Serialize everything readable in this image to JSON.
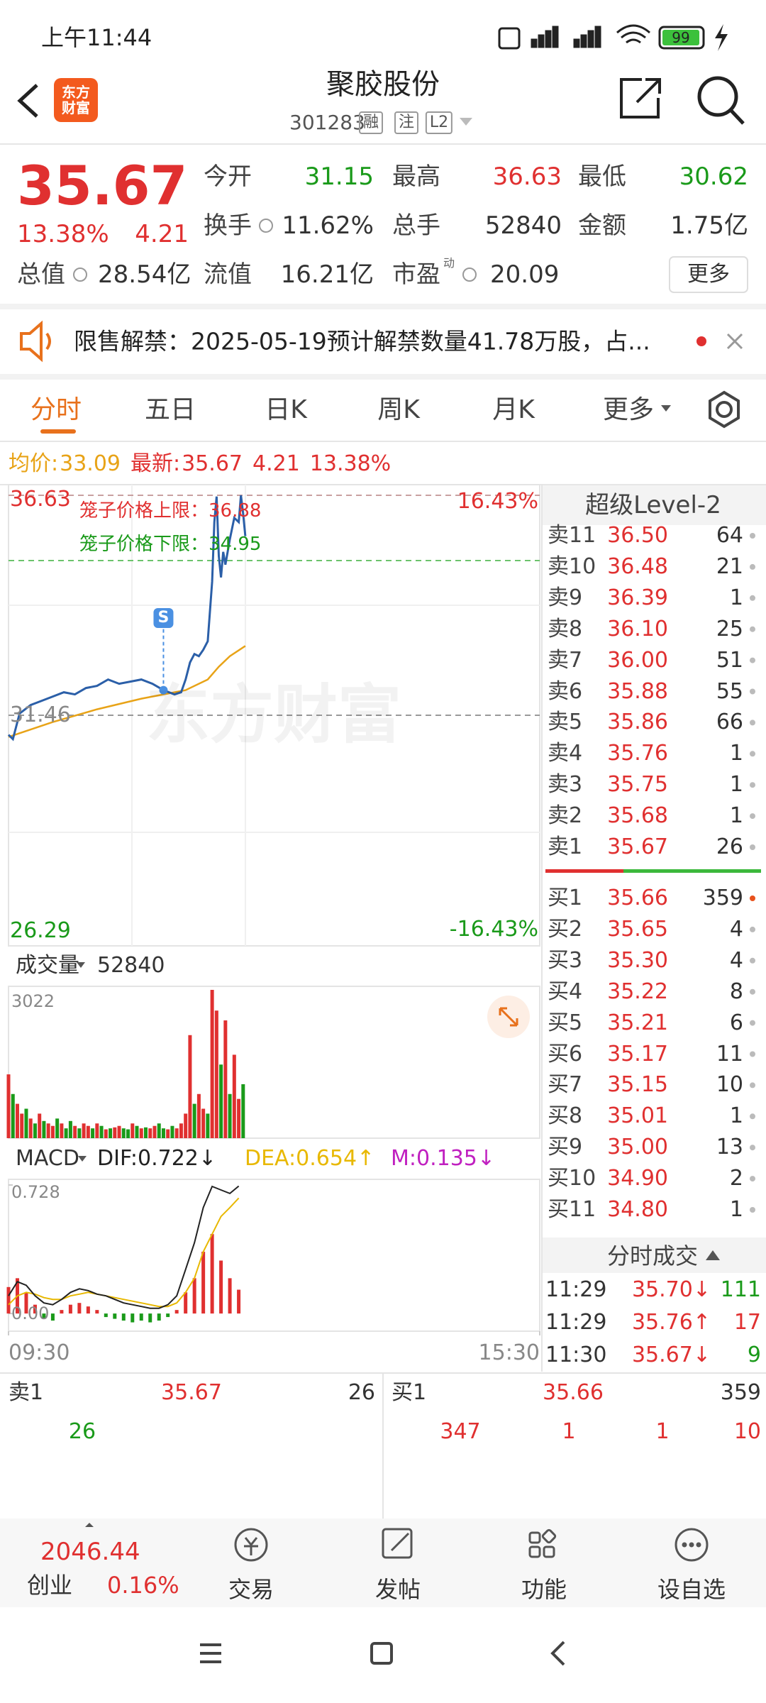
{
  "status": {
    "time": "上午11:44",
    "battery": "99"
  },
  "header": {
    "logo": "东方财富",
    "name": "聚胶股份",
    "code": "301283",
    "tags": [
      "融",
      "注",
      "L2"
    ]
  },
  "quote": {
    "price": "35.67",
    "pct": "13.38%",
    "change": "4.21",
    "more": "更多",
    "fields": [
      {
        "label": "今开",
        "value": "31.15",
        "color": "#1a9a1a"
      },
      {
        "label": "最高",
        "value": "36.63",
        "color": "#e03030"
      },
      {
        "label": "最低",
        "value": "30.62",
        "color": "#1a9a1a"
      },
      {
        "label": "换手",
        "value": "11.62%",
        "color": "#333333"
      },
      {
        "label": "总手",
        "value": "52840",
        "color": "#333333"
      },
      {
        "label": "金额",
        "value": "1.75亿",
        "color": "#333333"
      },
      {
        "label": "总值",
        "value": "28.54亿",
        "color": "#333333"
      },
      {
        "label": "流值",
        "value": "16.21亿",
        "color": "#333333"
      },
      {
        "label": "市盈",
        "sup": "动",
        "value": "20.09",
        "color": "#333333"
      }
    ]
  },
  "notice": "限售解禁：2025-05-19预计解禁数量41.78万股，占...",
  "tabs": [
    "分时",
    "五日",
    "日K",
    "周K",
    "月K",
    "更多"
  ],
  "chart": {
    "summary": {
      "avg_label": "均价:",
      "avg": "33.09",
      "latest_label": "最新:",
      "latest": "35.67",
      "change": "4.21",
      "pct": "13.38%"
    },
    "ylim": [
      26.29,
      36.63
    ],
    "yticks": [
      36.63,
      31.46,
      26.29
    ],
    "pct_labels": [
      "16.43%",
      "-16.43%"
    ],
    "cage": [
      "笼子价格上限：36.88",
      "笼子价格下限：34.95"
    ],
    "xlim": [
      0,
      240
    ],
    "xticks": [
      {
        "value": 0,
        "label": "09:30"
      },
      {
        "value": 240,
        "label": "15:30"
      }
    ],
    "price": {
      "color": "#2b5fa8",
      "x": [
        0,
        2,
        5,
        10,
        15,
        20,
        25,
        30,
        35,
        40,
        45,
        50,
        55,
        60,
        65,
        70,
        75,
        78,
        80,
        82,
        84,
        86,
        88,
        90,
        92,
        93,
        94,
        95,
        96,
        97,
        98,
        100,
        102,
        104,
        105,
        106,
        107
      ],
      "values": [
        31.0,
        30.9,
        31.5,
        31.7,
        31.8,
        31.9,
        32.0,
        31.95,
        32.1,
        32.15,
        32.3,
        32.2,
        32.25,
        32.3,
        32.2,
        32.05,
        31.95,
        32.0,
        32.3,
        32.7,
        32.9,
        32.85,
        33.0,
        33.2,
        34.6,
        36.0,
        36.6,
        35.2,
        34.7,
        35.3,
        35.0,
        35.6,
        36.1,
        36.0,
        36.63,
        36.2,
        35.67
      ]
    },
    "avg": {
      "color": "#e8a317",
      "x": [
        0,
        20,
        40,
        60,
        70,
        80,
        90,
        95,
        100,
        107
      ],
      "values": [
        30.95,
        31.3,
        31.6,
        31.85,
        31.95,
        32.05,
        32.3,
        32.6,
        32.85,
        33.09
      ]
    },
    "marker": {
      "label": "S",
      "x": 70,
      "value": 32.05
    },
    "volume": {
      "label": "成交量",
      "total": "52840",
      "ylim": [
        0,
        3022
      ],
      "yticks": [
        3022
      ],
      "up_color": "#e03030",
      "down_color": "#1a9a1a",
      "x": [
        0,
        2,
        4,
        6,
        8,
        10,
        12,
        14,
        16,
        18,
        20,
        22,
        24,
        26,
        28,
        30,
        32,
        34,
        36,
        38,
        40,
        42,
        44,
        46,
        48,
        50,
        52,
        54,
        56,
        58,
        60,
        62,
        64,
        66,
        68,
        70,
        72,
        74,
        76,
        78,
        80,
        82,
        84,
        86,
        88,
        90,
        92,
        94,
        96,
        98,
        100,
        102,
        104,
        106
      ],
      "values": [
        1300,
        900,
        700,
        500,
        600,
        400,
        300,
        500,
        350,
        300,
        250,
        400,
        300,
        200,
        350,
        250,
        200,
        300,
        250,
        200,
        300,
        250,
        180,
        200,
        220,
        250,
        200,
        180,
        300,
        250,
        200,
        220,
        200,
        250,
        300,
        200,
        180,
        250,
        200,
        300,
        500,
        2100,
        700,
        900,
        600,
        500,
        3022,
        2600,
        1500,
        2400,
        900,
        1700,
        800,
        1100
      ],
      "up": [
        true,
        false,
        true,
        true,
        false,
        true,
        false,
        true,
        false,
        true,
        true,
        false,
        true,
        false,
        false,
        true,
        false,
        true,
        true,
        false,
        true,
        false,
        true,
        false,
        true,
        true,
        false,
        false,
        true,
        false,
        true,
        false,
        true,
        true,
        false,
        false,
        true,
        false,
        true,
        true,
        true,
        true,
        false,
        true,
        true,
        false,
        true,
        true,
        false,
        true,
        false,
        true,
        true,
        false
      ]
    },
    "macd": {
      "label": "MACD",
      "dif": "DIF:0.722↓",
      "dea": "DEA:0.654↑",
      "m": "M:0.135↓",
      "dif_color": "#222222",
      "dea_color": "#e8b800",
      "m_color": "#c020c0",
      "ylim": [
        -0.1,
        0.728
      ],
      "yticks": [
        0.728,
        {
          "value": 0,
          "label": "0.00"
        }
      ],
      "x": [
        0,
        4,
        8,
        12,
        16,
        20,
        24,
        28,
        32,
        36,
        40,
        44,
        48,
        52,
        56,
        60,
        64,
        68,
        72,
        76,
        80,
        84,
        88,
        92,
        96,
        100,
        104
      ],
      "bars": [
        0.15,
        0.2,
        0.12,
        0.05,
        -0.03,
        -0.04,
        0.02,
        0.05,
        0.06,
        0.04,
        0.02,
        -0.02,
        -0.03,
        -0.04,
        -0.05,
        -0.04,
        -0.05,
        -0.04,
        -0.02,
        0.02,
        0.12,
        0.2,
        0.35,
        0.45,
        0.3,
        0.2,
        0.135
      ],
      "dif_line": [
        0.1,
        0.18,
        0.16,
        0.1,
        0.06,
        0.05,
        0.08,
        0.12,
        0.14,
        0.13,
        0.11,
        0.1,
        0.08,
        0.06,
        0.05,
        0.04,
        0.03,
        0.03,
        0.05,
        0.1,
        0.25,
        0.4,
        0.6,
        0.72,
        0.7,
        0.68,
        0.722
      ],
      "dea_line": [
        0.05,
        0.1,
        0.12,
        0.11,
        0.09,
        0.08,
        0.08,
        0.1,
        0.11,
        0.12,
        0.11,
        0.1,
        0.09,
        0.08,
        0.07,
        0.06,
        0.05,
        0.04,
        0.04,
        0.06,
        0.12,
        0.2,
        0.35,
        0.45,
        0.55,
        0.6,
        0.654
      ]
    }
  },
  "orderbook": {
    "title": "超级Level-2",
    "asks": [
      {
        "label": "卖11",
        "price": "36.50",
        "vol": "64"
      },
      {
        "label": "卖10",
        "price": "36.48",
        "vol": "21"
      },
      {
        "label": "卖9",
        "price": "36.39",
        "vol": "1"
      },
      {
        "label": "卖8",
        "price": "36.10",
        "vol": "25"
      },
      {
        "label": "卖7",
        "price": "36.00",
        "vol": "51"
      },
      {
        "label": "卖6",
        "price": "35.88",
        "vol": "55"
      },
      {
        "label": "卖5",
        "price": "35.86",
        "vol": "66"
      },
      {
        "label": "卖4",
        "price": "35.76",
        "vol": "1"
      },
      {
        "label": "卖3",
        "price": "35.75",
        "vol": "1"
      },
      {
        "label": "卖2",
        "price": "35.68",
        "vol": "1"
      },
      {
        "label": "卖1",
        "price": "35.67",
        "vol": "26"
      }
    ],
    "bids": [
      {
        "label": "买1",
        "price": "35.66",
        "vol": "359"
      },
      {
        "label": "买2",
        "price": "35.65",
        "vol": "4"
      },
      {
        "label": "买3",
        "price": "35.30",
        "vol": "4"
      },
      {
        "label": "买4",
        "price": "35.22",
        "vol": "8"
      },
      {
        "label": "买5",
        "price": "35.21",
        "vol": "6"
      },
      {
        "label": "买6",
        "price": "35.17",
        "vol": "11"
      },
      {
        "label": "买7",
        "price": "35.15",
        "vol": "10"
      },
      {
        "label": "买8",
        "price": "35.01",
        "vol": "1"
      },
      {
        "label": "买9",
        "price": "35.00",
        "vol": "13"
      },
      {
        "label": "买10",
        "price": "34.90",
        "vol": "2"
      },
      {
        "label": "买11",
        "price": "34.80",
        "vol": "1"
      }
    ],
    "trades_title": "分时成交",
    "trades": [
      {
        "time": "11:29",
        "price": "35.70↓",
        "vol": "111",
        "up": false
      },
      {
        "time": "11:29",
        "price": "35.76↑",
        "vol": "17",
        "up": true
      },
      {
        "time": "11:30",
        "price": "35.67↓",
        "vol": "9",
        "up": false
      }
    ]
  },
  "level1": {
    "sell": {
      "label": "卖1",
      "price": "35.67",
      "vol": "26",
      "detail": [
        "26"
      ]
    },
    "buy": {
      "label": "买1",
      "price": "35.66",
      "vol": "359",
      "detail": [
        "347",
        "1",
        "1",
        "10"
      ]
    }
  },
  "bottom_nav": {
    "index_value": "2046.44",
    "index_name": "创业",
    "index_pct": "0.16%",
    "items": [
      "交易",
      "发帖",
      "功能",
      "设自选"
    ]
  }
}
